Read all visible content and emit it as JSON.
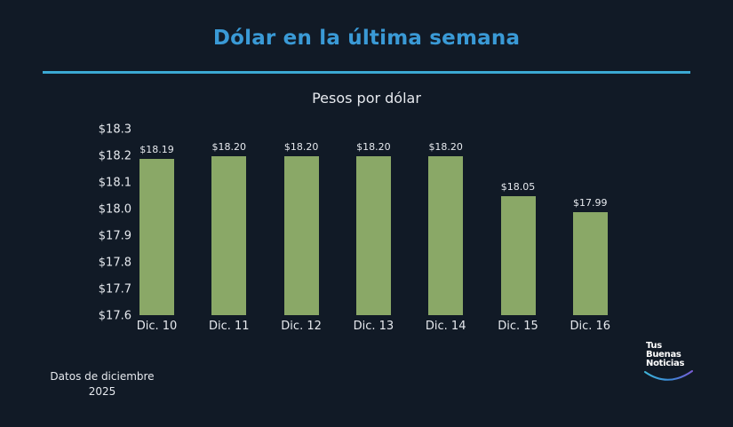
{
  "header": {
    "title": "Dólar en la última semana",
    "subtitle": "Pesos por dólar"
  },
  "colors": {
    "background": "#111a26",
    "title": "#3a9ad6",
    "divider": "#3ba9d3",
    "bar": "#8aa867",
    "text": "#e6e9ee"
  },
  "footnote": {
    "line1": "Datos de diciembre",
    "line2": "2025"
  },
  "logo": {
    "line1": "Tus",
    "line2": "Buenas",
    "line3": "Noticias"
  },
  "chart_data": {
    "type": "bar",
    "title": "Dólar en la última semana",
    "subtitle": "Pesos por dólar",
    "xlabel": "",
    "ylabel": "Pesos por dólar",
    "categories": [
      "Dic. 10",
      "Dic. 11",
      "Dic. 12",
      "Dic. 13",
      "Dic. 14",
      "Dic. 15",
      "Dic. 16"
    ],
    "values": [
      18.19,
      18.2,
      18.2,
      18.2,
      18.2,
      18.05,
      17.99
    ],
    "value_labels": [
      "$18.19",
      "$18.20",
      "$18.20",
      "$18.20",
      "$18.20",
      "$18.05",
      "$17.99"
    ],
    "ylim": [
      17.6,
      18.3
    ],
    "yticks": [
      18.3,
      18.2,
      18.1,
      18.0,
      17.9,
      17.8,
      17.7,
      17.6
    ],
    "ytick_labels": [
      "$18.3",
      "$18.2",
      "$18.1",
      "$18.0",
      "$17.9",
      "$17.8",
      "$17.7",
      "$17.6"
    ],
    "grid": false,
    "legend": null,
    "annotations": [
      "Datos de diciembre 2025"
    ]
  }
}
